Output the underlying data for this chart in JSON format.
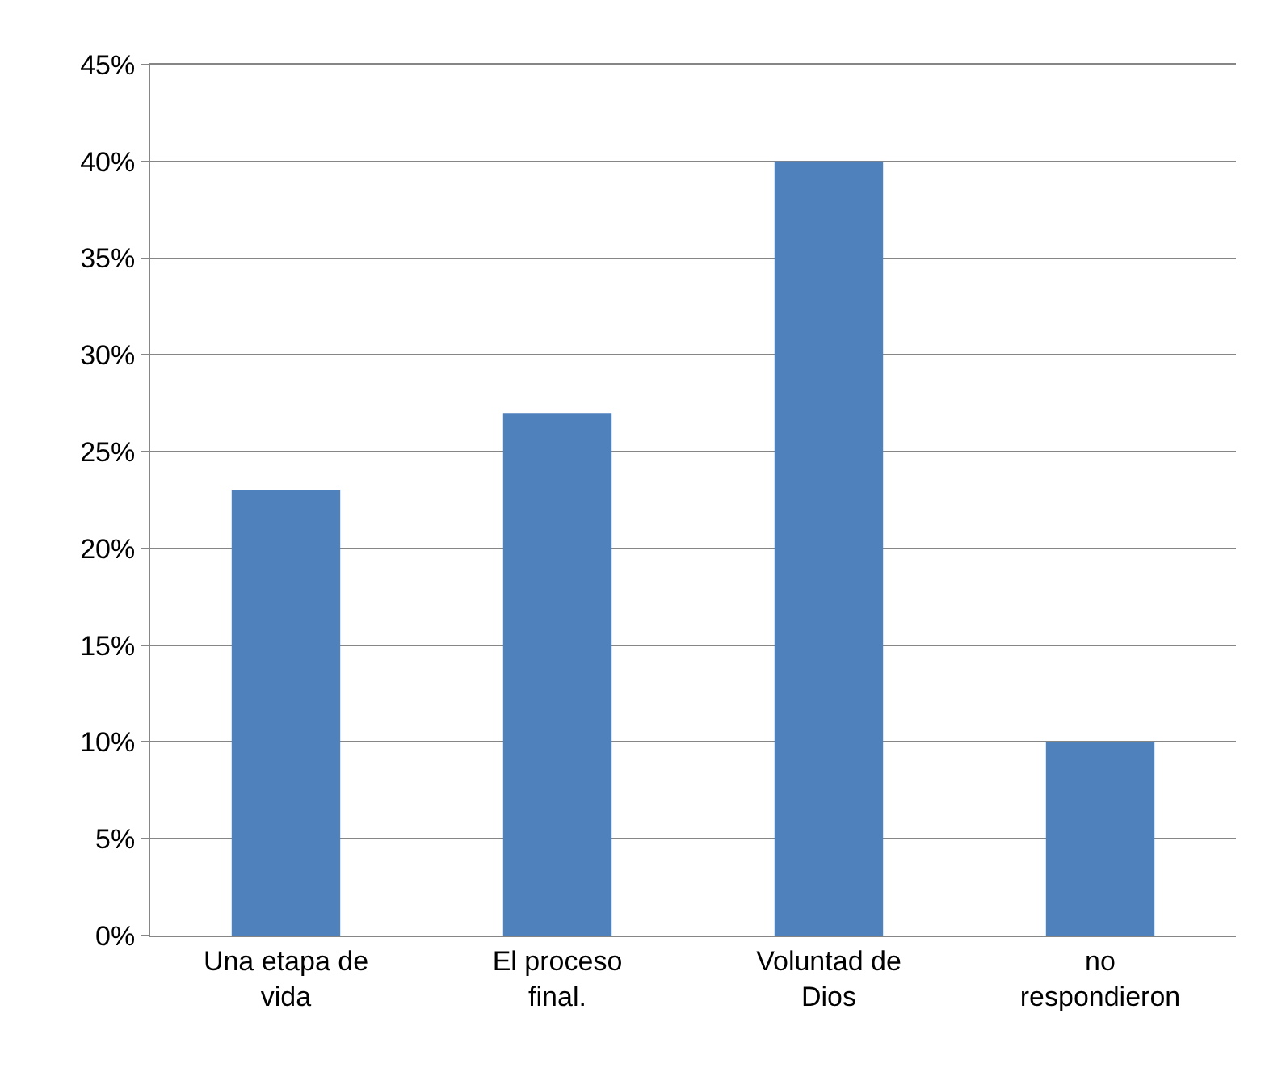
{
  "chart_data": {
    "type": "bar",
    "categories": [
      "Una etapa de vida",
      "El proceso final.",
      "Voluntad de Dios",
      "no respondieron"
    ],
    "values": [
      23,
      27,
      40,
      10
    ],
    "color": "#4f81bd",
    "ylim": [
      0,
      45
    ],
    "yticks": [
      {
        "value": 0,
        "label": "0%"
      },
      {
        "value": 5,
        "label": "5%"
      },
      {
        "value": 10,
        "label": "10%"
      },
      {
        "value": 15,
        "label": "15%"
      },
      {
        "value": 20,
        "label": "20%"
      },
      {
        "value": 25,
        "label": "25%"
      },
      {
        "value": 30,
        "label": "30%"
      },
      {
        "value": 35,
        "label": "35%"
      },
      {
        "value": 40,
        "label": "40%"
      },
      {
        "value": 45,
        "label": "45%"
      }
    ],
    "grid": "y"
  }
}
